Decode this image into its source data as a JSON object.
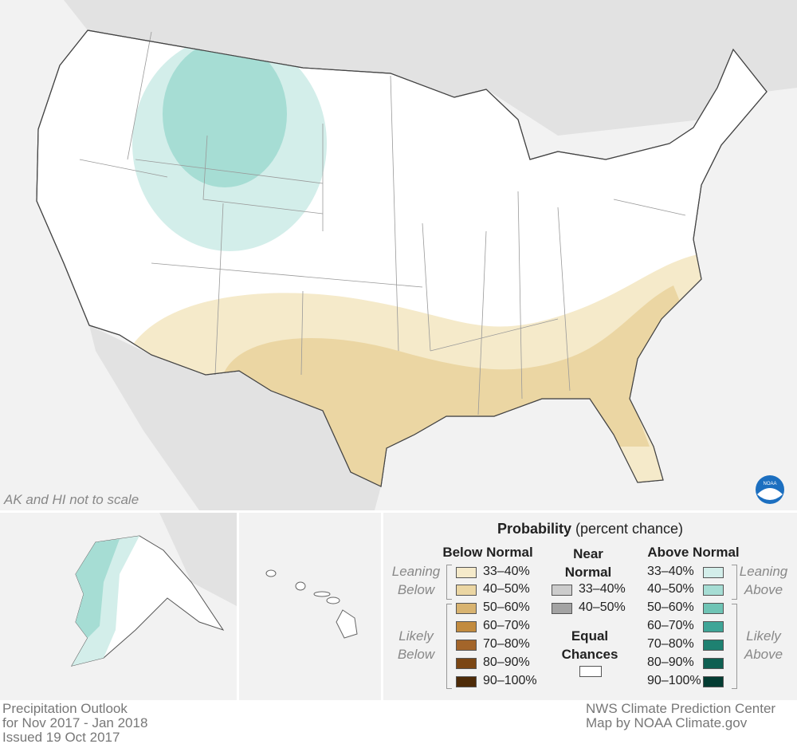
{
  "map": {
    "note": "AK and HI not to scale",
    "logo": "NOAA"
  },
  "legend": {
    "title": "Probability",
    "subtitle": "(percent chance)",
    "below_normal": {
      "heading": "Below Normal",
      "leaning_label": "Leaning Below",
      "likely_label": "Likely Below",
      "items": [
        {
          "label": "33–40%",
          "color": "#f5eaca"
        },
        {
          "label": "40–50%",
          "color": "#ebd6a3"
        },
        {
          "label": "50–60%",
          "color": "#d8b370"
        },
        {
          "label": "60–70%",
          "color": "#c28b3f"
        },
        {
          "label": "70–80%",
          "color": "#a3652a"
        },
        {
          "label": "80–90%",
          "color": "#7b4614"
        },
        {
          "label": "90–100%",
          "color": "#4e2b08"
        }
      ]
    },
    "near_normal": {
      "heading": "Near Normal",
      "items": [
        {
          "label": "33–40%",
          "color": "#cccccc"
        },
        {
          "label": "40–50%",
          "color": "#a3a3a3"
        }
      ]
    },
    "equal_chances": {
      "heading": "Equal Chances",
      "color": "#ffffff"
    },
    "above_normal": {
      "heading": "Above Normal",
      "leaning_label": "Leaning Above",
      "likely_label": "Likely Above",
      "items": [
        {
          "label": "33–40%",
          "color": "#d3eeea"
        },
        {
          "label": "40–50%",
          "color": "#a6ddd4"
        },
        {
          "label": "50–60%",
          "color": "#6fc4b5"
        },
        {
          "label": "60–70%",
          "color": "#3fa597"
        },
        {
          "label": "70–80%",
          "color": "#1e8171"
        },
        {
          "label": "80–90%",
          "color": "#0e5f51"
        },
        {
          "label": "90–100%",
          "color": "#043c32"
        }
      ]
    }
  },
  "footer": {
    "left": [
      "Precipitation Outlook",
      "for Nov 2017 - Jan 2018",
      "Issued 19 Oct 2017"
    ],
    "right": [
      "NWS Climate Prediction Center",
      "Map by NOAA Climate.gov"
    ]
  }
}
